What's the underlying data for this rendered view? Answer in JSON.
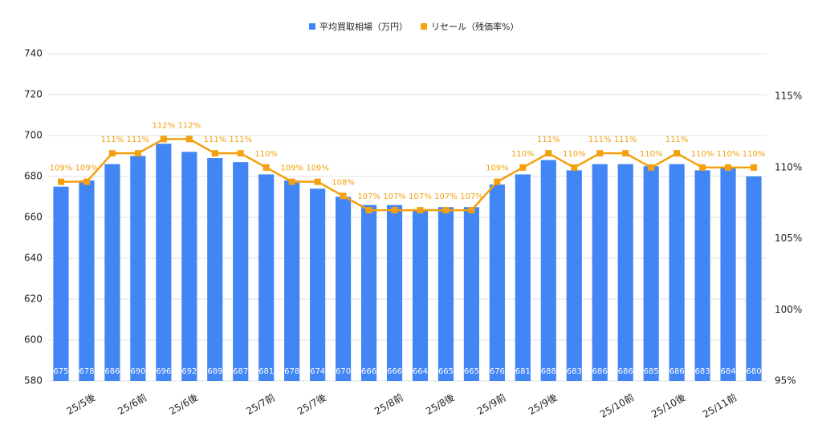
{
  "chart_data": {
    "type": "bar",
    "categories": [
      null,
      "25/5後",
      null,
      "25/6前",
      null,
      "25/6後",
      null,
      null,
      "25/7前",
      null,
      "25/7後",
      null,
      null,
      "25/8前",
      null,
      "25/8後",
      null,
      "25/9前",
      null,
      "25/9後",
      null,
      null,
      "25/10前",
      null,
      "25/10後",
      null,
      "25/11前",
      null
    ],
    "series": [
      {
        "name": "平均買取相場（万円）",
        "type": "bar",
        "color": "#4285f4",
        "values": [
          675,
          678,
          686,
          690,
          696,
          692,
          689,
          687,
          681,
          678,
          674,
          670,
          666,
          666,
          664,
          665,
          665,
          676,
          681,
          688,
          683,
          686,
          686,
          685,
          686,
          683,
          684,
          680
        ]
      },
      {
        "name": "リセール（残価率%）",
        "type": "line",
        "axis": "y2",
        "color": "#f4a00f",
        "values": [
          109,
          109,
          111,
          111,
          112,
          112,
          111,
          111,
          110,
          109,
          109,
          108,
          107,
          107,
          107,
          107,
          107,
          109,
          110,
          111,
          110,
          111,
          111,
          110,
          111,
          110,
          110,
          110
        ],
        "value_labels": [
          "109%",
          "109%",
          "111%",
          "111%",
          "112%",
          "112%",
          "111%",
          "111%",
          "110%",
          "109%",
          "109%",
          "108%",
          "107%",
          "107%",
          "107%",
          "107%",
          "107%",
          "109%",
          "110%",
          "111%",
          "110%",
          "111%",
          "111%",
          "110%",
          "111%",
          "110%",
          "110%",
          "110%"
        ]
      }
    ],
    "ylim": [
      580,
      740
    ],
    "yticks": [
      580,
      600,
      620,
      640,
      660,
      680,
      700,
      720,
      740
    ],
    "y2lim": [
      95,
      118
    ],
    "y2ticks": [
      {
        "value": 95,
        "label": "95%"
      },
      {
        "value": 100,
        "label": "100%"
      },
      {
        "value": 105,
        "label": "105%"
      },
      {
        "value": 110,
        "label": "110%"
      },
      {
        "value": 115,
        "label": "115%"
      }
    ],
    "grid": true,
    "legend": "top"
  }
}
